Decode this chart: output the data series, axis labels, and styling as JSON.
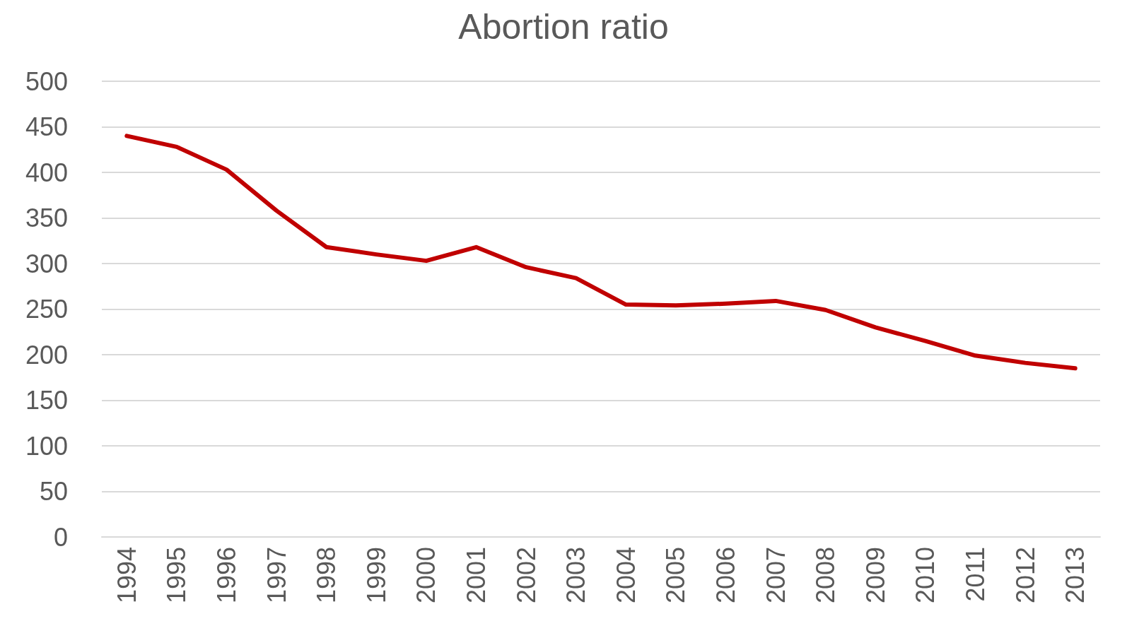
{
  "chart_data": {
    "type": "line",
    "title": "Abortion ratio",
    "categories": [
      "1994",
      "1995",
      "1996",
      "1997",
      "1998",
      "1999",
      "2000",
      "2001",
      "2002",
      "2003",
      "2004",
      "2005",
      "2006",
      "2007",
      "2008",
      "2009",
      "2010",
      "2011",
      "2012",
      "2013"
    ],
    "series": [
      {
        "color": "#c00000",
        "values": [
          440,
          428,
          403,
          358,
          318,
          310,
          303,
          318,
          296,
          284,
          255,
          254,
          256,
          259,
          249,
          230,
          215,
          199,
          191,
          185
        ]
      }
    ],
    "ylim": [
      0,
      500
    ],
    "yticks": [
      0,
      50,
      100,
      150,
      200,
      250,
      300,
      350,
      400,
      450,
      500
    ],
    "grid": "y",
    "marker": "none",
    "line_style": "solid"
  }
}
